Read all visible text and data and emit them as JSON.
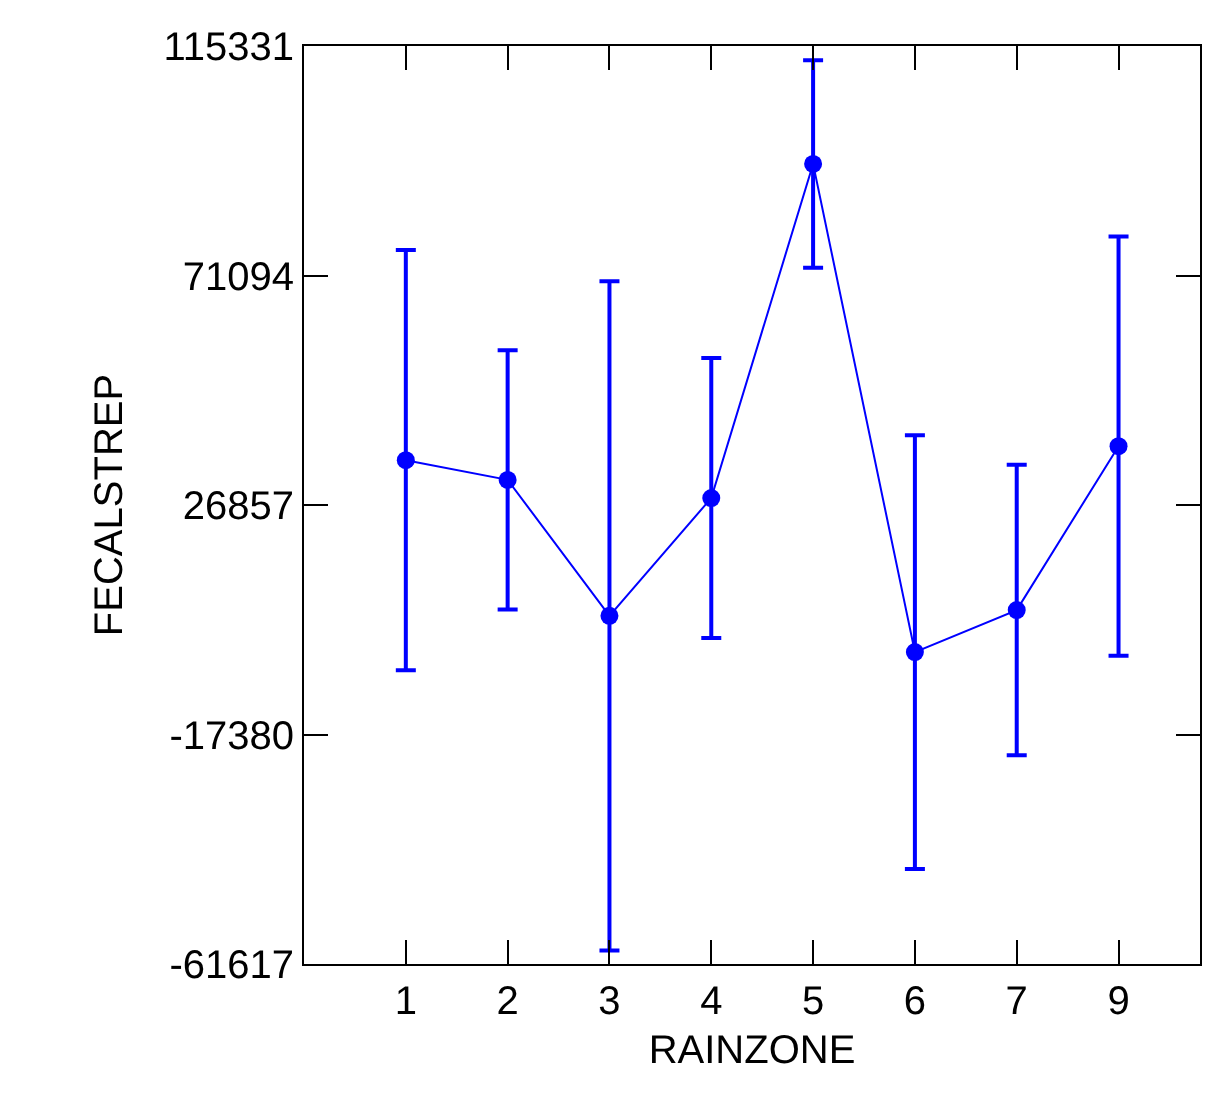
{
  "chart_data": {
    "type": "line",
    "xlabel": "RAINZONE",
    "ylabel": "FECALSTREP",
    "categories": [
      "1",
      "2",
      "3",
      "4",
      "5",
      "6",
      "7",
      "9"
    ],
    "series": [
      {
        "color": "#0000ff",
        "values": [
          35500,
          31700,
          5500,
          28200,
          92600,
          -1500,
          6600,
          38200
        ],
        "errors": [
          40500,
          25000,
          64500,
          27000,
          20000,
          41800,
          28000,
          40400
        ]
      }
    ],
    "ylim": [
      -61617,
      115331
    ],
    "yticks": [
      -61617,
      -17380,
      26857,
      71094,
      115331
    ],
    "grid": false,
    "marker": "circle",
    "line_style": "solid"
  }
}
